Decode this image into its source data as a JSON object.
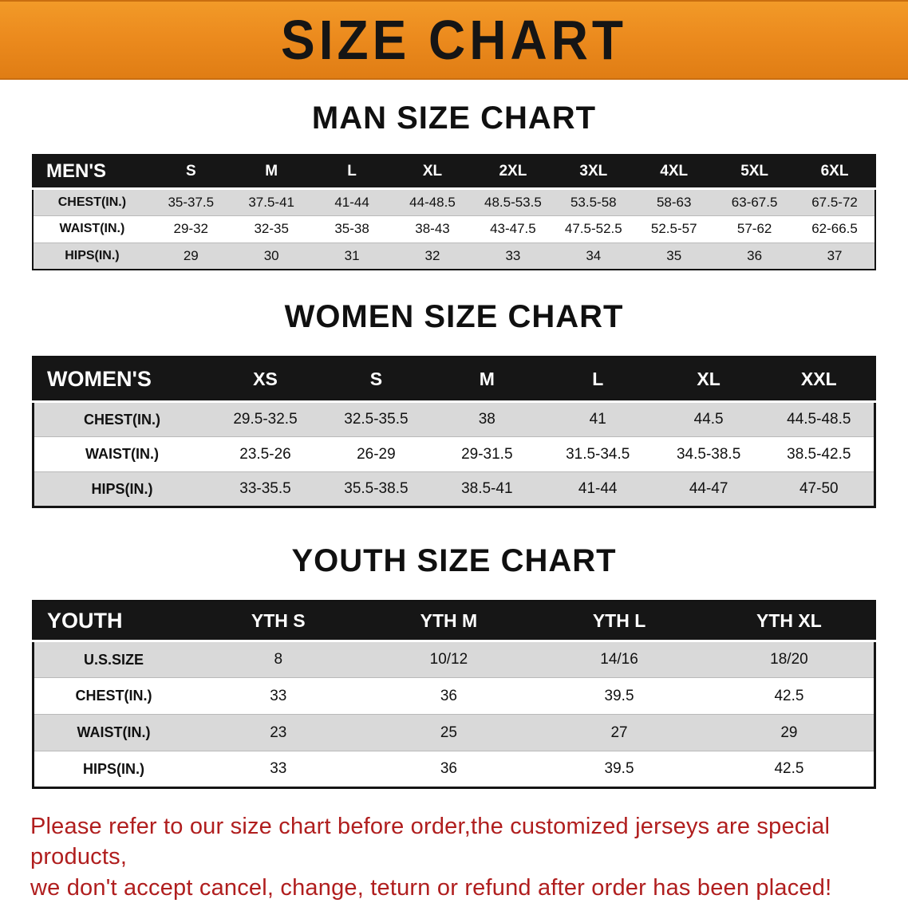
{
  "banner": {
    "title": "SIZE CHART"
  },
  "colors": {
    "banner-orange": "#EC8B1E",
    "header-black": "#161616",
    "row-gray": "#D9D9D9",
    "note-red": "#B01E1E"
  },
  "sections": [
    {
      "id": "men",
      "heading": "MAN SIZE CHART",
      "table": {
        "header": [
          "MEN'S",
          "S",
          "M",
          "L",
          "XL",
          "2XL",
          "3XL",
          "4XL",
          "5XL",
          "6XL"
        ],
        "rows": [
          [
            "CHEST(IN.)",
            "35-37.5",
            "37.5-41",
            "41-44",
            "44-48.5",
            "48.5-53.5",
            "53.5-58",
            "58-63",
            "63-67.5",
            "67.5-72"
          ],
          [
            "WAIST(IN.)",
            "29-32",
            "32-35",
            "35-38",
            "38-43",
            "43-47.5",
            "47.5-52.5",
            "52.5-57",
            "57-62",
            "62-66.5"
          ],
          [
            "HIPS(IN.)",
            "29",
            "30",
            "31",
            "32",
            "33",
            "34",
            "35",
            "36",
            "37"
          ]
        ]
      }
    },
    {
      "id": "women",
      "heading": "WOMEN SIZE CHART",
      "table": {
        "header": [
          "WOMEN'S",
          "XS",
          "S",
          "M",
          "L",
          "XL",
          "XXL"
        ],
        "rows": [
          [
            "CHEST(IN.)",
            "29.5-32.5",
            "32.5-35.5",
            "38",
            "41",
            "44.5",
            "44.5-48.5"
          ],
          [
            "WAIST(IN.)",
            "23.5-26",
            "26-29",
            "29-31.5",
            "31.5-34.5",
            "34.5-38.5",
            "38.5-42.5"
          ],
          [
            "HIPS(IN.)",
            "33-35.5",
            "35.5-38.5",
            "38.5-41",
            "41-44",
            "44-47",
            "47-50"
          ]
        ]
      }
    },
    {
      "id": "youth",
      "heading": "YOUTH SIZE CHART",
      "table": {
        "header": [
          "YOUTH",
          "YTH S",
          "YTH M",
          "YTH L",
          "YTH XL"
        ],
        "rows": [
          [
            "U.S.SIZE",
            "8",
            "10/12",
            "14/16",
            "18/20"
          ],
          [
            "CHEST(IN.)",
            "33",
            "36",
            "39.5",
            "42.5"
          ],
          [
            "WAIST(IN.)",
            "23",
            "25",
            "27",
            "29"
          ],
          [
            "HIPS(IN.)",
            "33",
            "36",
            "39.5",
            "42.5"
          ]
        ]
      }
    }
  ],
  "note": {
    "line1": "Please refer to our size chart before order,the customized jerseys are special products,",
    "line2": "we don't accept cancel, change, teturn or refund after order has been placed!"
  }
}
